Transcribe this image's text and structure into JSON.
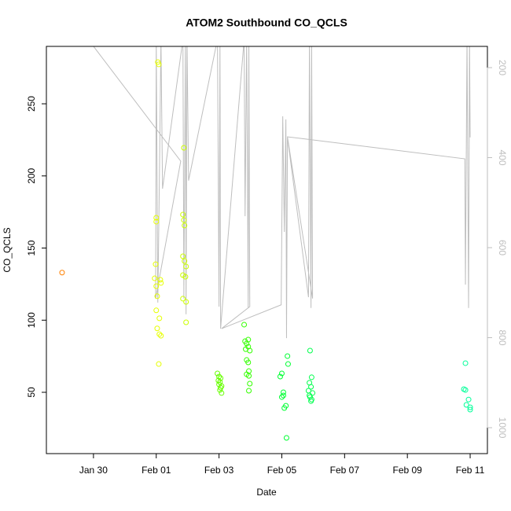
{
  "chart_data": {
    "type": "scatter",
    "title": "ATOM2 Southbound CO_QCLS",
    "x_label": "Date",
    "y_label": "CO_QCLS",
    "xlim": [
      28.5,
      42.55
    ],
    "xticks": [
      {
        "value": 30,
        "label": "Jan 30"
      },
      {
        "value": 32,
        "label": "Feb 01"
      },
      {
        "value": 34,
        "label": "Feb 03"
      },
      {
        "value": 36,
        "label": "Feb 05"
      },
      {
        "value": 38,
        "label": "Feb 07"
      },
      {
        "value": 40,
        "label": "Feb 09"
      },
      {
        "value": 42,
        "label": "Feb 11"
      }
    ],
    "ylim": [
      7.5,
      289.8
    ],
    "yticks": [
      50,
      100,
      150,
      200,
      250
    ],
    "y2lim": [
      1057.6,
      152.8
    ],
    "y2ticks": [
      200,
      400,
      600,
      800,
      1000
    ],
    "y2_color": "#bebebe",
    "points": {
      "x": [
        29.0,
        32.05,
        32.08,
        32.0,
        32.0,
        31.98,
        31.95,
        32.15,
        32.0,
        32.13,
        32.03,
        32.0,
        32.1,
        32.03,
        32.1,
        32.15,
        32.08,
        32.88,
        32.85,
        32.88,
        32.9,
        32.85,
        32.9,
        32.95,
        32.85,
        32.93,
        32.85,
        32.95,
        32.95,
        33.95,
        34.0,
        34.05,
        33.98,
        34.03,
        34.0,
        34.08,
        34.05,
        34.03,
        34.08,
        34.8,
        34.93,
        34.83,
        34.88,
        34.93,
        34.85,
        34.98,
        34.88,
        34.93,
        34.95,
        34.88,
        34.95,
        34.98,
        34.95,
        36.0,
        35.95,
        36.05,
        36.05,
        36.0,
        36.13,
        36.08,
        36.15,
        36.18,
        36.2,
        36.9,
        36.95,
        36.88,
        36.93,
        36.85,
        36.98,
        36.9,
        36.95,
        36.93,
        36.88,
        41.85,
        41.8,
        41.85,
        41.95,
        41.88,
        42.0,
        42.0
      ],
      "values": [
        133,
        278.9,
        277.3,
        171,
        168.3,
        138.8,
        129,
        125.8,
        123.6,
        128,
        116.6,
        106.8,
        101.3,
        94.3,
        90.3,
        89.2,
        69.6,
        219.5,
        173.2,
        169.4,
        165.6,
        144.3,
        141,
        137.2,
        131.2,
        130.1,
        114.9,
        112.7,
        98.5,
        63.1,
        60.9,
        59.8,
        58.2,
        57.1,
        55.5,
        54.3,
        53.2,
        51.6,
        49.5,
        96.9,
        86.5,
        85.4,
        83.8,
        81.6,
        79.9,
        78.9,
        72.4,
        70.7,
        64.7,
        62.5,
        61.4,
        56,
        51.1,
        63.1,
        60.9,
        50,
        47.8,
        46.7,
        40.7,
        39.1,
        18.4,
        75.1,
        69.6,
        78.9,
        60.4,
        56.6,
        53.8,
        51.1,
        49.5,
        46.7,
        45,
        43.9,
        47.8,
        70.2,
        52.2,
        51.6,
        45,
        41.3,
        39.6,
        38
      ],
      "colors": [
        "#ff8000",
        "#e6ff00",
        "#e6ff00",
        "#e6ff00",
        "#e6ff00",
        "#e6ff00",
        "#e6ff00",
        "#e6ff00",
        "#e6ff00",
        "#e6ff00",
        "#e6ff00",
        "#e6ff00",
        "#e6ff00",
        "#e6ff00",
        "#e6ff00",
        "#e6ff00",
        "#e6ff00",
        "#ccff00",
        "#ccff00",
        "#ccff00",
        "#ccff00",
        "#ccff00",
        "#ccff00",
        "#ccff00",
        "#ccff00",
        "#ccff00",
        "#ccff00",
        "#ccff00",
        "#ccff00",
        "#66ff00",
        "#66ff00",
        "#66ff00",
        "#66ff00",
        "#66ff00",
        "#66ff00",
        "#66ff00",
        "#66ff00",
        "#66ff00",
        "#66ff00",
        "#33ff00",
        "#33ff00",
        "#33ff00",
        "#33ff00",
        "#33ff00",
        "#33ff00",
        "#33ff00",
        "#33ff00",
        "#33ff00",
        "#33ff00",
        "#33ff00",
        "#33ff00",
        "#33ff00",
        "#33ff00",
        "#00ff33",
        "#00ff33",
        "#00ff33",
        "#00ff33",
        "#00ff33",
        "#00ff33",
        "#00ff33",
        "#00ff33",
        "#00ff33",
        "#00ff33",
        "#00ff4d",
        "#00ff4d",
        "#00ff4d",
        "#00ff4d",
        "#00ff4d",
        "#00ff4d",
        "#00ff4d",
        "#00ff4d",
        "#00ff4d",
        "#00ff4d",
        "#00ff99",
        "#00ff99",
        "#00ff99",
        "#00ff99",
        "#00ff99",
        "#00ff99",
        "#00ff99"
      ]
    },
    "line": {
      "axis": "y2",
      "color": "#bebebe",
      "x": [
        29.83,
        32.78,
        31.98,
        32.0,
        32.05,
        32.1,
        32.15,
        32.2,
        32.85,
        32.88,
        32.93,
        32.95,
        32.98,
        33.03,
        33.95,
        34.0,
        34.03,
        34.05,
        34.8,
        34.83,
        34.88,
        34.93,
        34.95,
        34.98,
        34.08,
        35.98,
        36.03,
        36.08,
        36.13,
        36.15,
        36.18,
        36.85,
        36.88,
        36.93,
        36.95,
        36.98,
        36.18,
        41.83,
        41.85,
        41.9,
        41.95,
        41.98,
        42.0
      ],
      "values": [
        137,
        407.8,
        713.5,
        137,
        722,
        448,
        137,
        469,
        137,
        713,
        137,
        748,
        137,
        451,
        137,
        731,
        137,
        780,
        137,
        530,
        137,
        734,
        137,
        731,
        780,
        727,
        308,
        565,
        315,
        801,
        355,
        710,
        137,
        734,
        137,
        713,
        353.7,
        402.6,
        682,
        137,
        734,
        137,
        355
      ]
    }
  }
}
